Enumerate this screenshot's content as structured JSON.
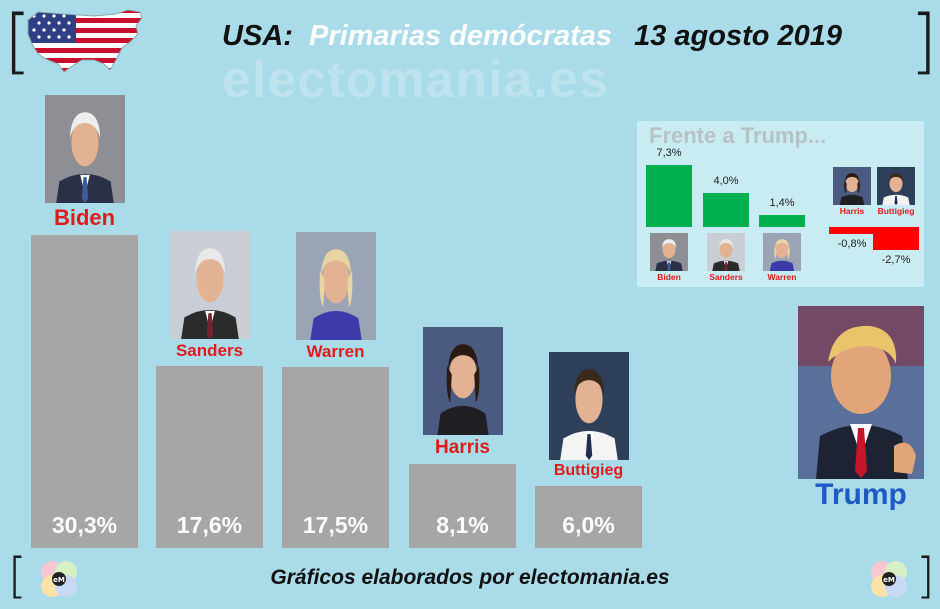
{
  "header": {
    "prefix": "USA:",
    "title": "Primarias demócratas",
    "date": "13 agosto 2019",
    "watermark": "electomania.es"
  },
  "chart_data": [
    {
      "type": "bar",
      "categories": [
        "Biden",
        "Sanders",
        "Warren",
        "Harris",
        "Buttigieg"
      ],
      "values": [
        30.3,
        17.6,
        17.5,
        8.1,
        6.0
      ],
      "value_labels": [
        "30,3%",
        "17,6%",
        "17,5%",
        "8,1%",
        "6,0%"
      ],
      "bar_color": "#a6a6a6",
      "name_color": "#e01b1b"
    },
    {
      "type": "bar",
      "title": "Frente a Trump...",
      "categories": [
        "Biden",
        "Sanders",
        "Warren",
        "Harris",
        "Buttigieg"
      ],
      "values": [
        7.3,
        4.0,
        1.4,
        -0.8,
        -2.7
      ],
      "value_labels": [
        "7,3%",
        "4,0%",
        "1,4%",
        "-0,8%",
        "-2,7%"
      ],
      "positive_color": "#00b050",
      "negative_color": "#ff0000"
    }
  ],
  "opponent": {
    "name": "Trump",
    "color": "#1f59c4"
  },
  "footer": {
    "credit": "Gráficos elaborados por electomania.es"
  }
}
